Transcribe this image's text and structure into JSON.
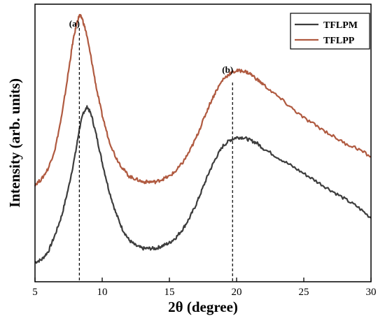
{
  "chart_data": {
    "type": "line",
    "title": "",
    "xlabel": "2θ (degree)",
    "ylabel": "Intensity (arb. units)",
    "xlim": [
      5,
      30
    ],
    "xticks": [
      5,
      10,
      15,
      20,
      25,
      30
    ],
    "ylim": [
      0,
      1
    ],
    "y_tick_labels_shown": false,
    "grid": false,
    "legend_position": "top-right",
    "series": [
      {
        "name": "TFLPM",
        "color": "#3d3d3d",
        "x": [
          5.0,
          5.5,
          6.0,
          6.5,
          7.0,
          7.5,
          8.0,
          8.3,
          8.6,
          8.9,
          9.2,
          9.6,
          10.0,
          10.5,
          11.0,
          11.5,
          12.0,
          12.5,
          13.0,
          13.5,
          14.0,
          14.5,
          15.0,
          15.5,
          16.0,
          16.5,
          17.0,
          17.5,
          18.0,
          18.5,
          19.0,
          19.5,
          20.0,
          20.5,
          21.0,
          21.5,
          22.0,
          23.0,
          24.0,
          25.0,
          26.0,
          27.0,
          28.0,
          29.0,
          30.0
        ],
        "y": [
          0.07,
          0.08,
          0.11,
          0.17,
          0.24,
          0.34,
          0.46,
          0.55,
          0.61,
          0.63,
          0.6,
          0.52,
          0.43,
          0.33,
          0.25,
          0.19,
          0.15,
          0.13,
          0.12,
          0.12,
          0.12,
          0.13,
          0.14,
          0.16,
          0.19,
          0.23,
          0.28,
          0.34,
          0.4,
          0.45,
          0.49,
          0.51,
          0.52,
          0.52,
          0.51,
          0.5,
          0.48,
          0.45,
          0.42,
          0.39,
          0.36,
          0.33,
          0.3,
          0.27,
          0.23
        ]
      },
      {
        "name": "TFLPP",
        "color": "#b05a40",
        "x": [
          5.0,
          5.5,
          6.0,
          6.5,
          7.0,
          7.5,
          7.8,
          8.1,
          8.3,
          8.5,
          8.8,
          9.2,
          9.6,
          10.0,
          10.5,
          11.0,
          11.5,
          12.0,
          12.5,
          13.0,
          13.5,
          14.0,
          14.5,
          15.0,
          15.5,
          16.0,
          16.5,
          17.0,
          17.5,
          18.0,
          18.5,
          19.0,
          19.5,
          20.0,
          20.5,
          21.0,
          21.5,
          22.0,
          23.0,
          24.0,
          25.0,
          26.0,
          27.0,
          28.0,
          29.0,
          30.0
        ],
        "y": [
          0.35,
          0.37,
          0.41,
          0.48,
          0.6,
          0.76,
          0.86,
          0.93,
          0.96,
          0.95,
          0.9,
          0.8,
          0.69,
          0.6,
          0.51,
          0.45,
          0.41,
          0.38,
          0.37,
          0.36,
          0.36,
          0.36,
          0.37,
          0.38,
          0.4,
          0.43,
          0.47,
          0.52,
          0.58,
          0.64,
          0.69,
          0.73,
          0.75,
          0.76,
          0.76,
          0.75,
          0.73,
          0.71,
          0.67,
          0.63,
          0.59,
          0.56,
          0.53,
          0.5,
          0.48,
          0.45
        ]
      }
    ],
    "annotations": [
      {
        "label": "(a)",
        "x": 8.3
      },
      {
        "label": "(b)",
        "x": 19.7
      }
    ]
  }
}
